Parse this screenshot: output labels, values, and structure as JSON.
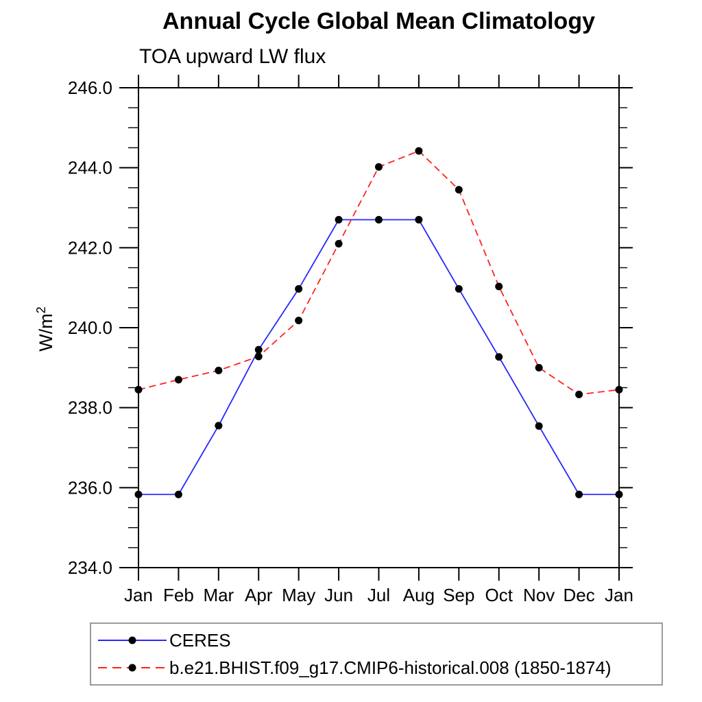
{
  "title": "Annual Cycle Global Mean Climatology",
  "subtitle": "TOA upward LW flux",
  "y_axis_label": {
    "base": "W/m",
    "exponent": "2"
  },
  "colors": {
    "ceres_line": "#2626ff",
    "model_line": "#ff2020",
    "marker": "#000000",
    "axis": "#000000",
    "legend_border": "#9a9a9a"
  },
  "chart_data": {
    "type": "line",
    "title": "Annual Cycle Global Mean Climatology",
    "subtitle": "TOA upward LW flux",
    "xlabel": "",
    "ylabel": "W/m²",
    "categories": [
      "Jan",
      "Feb",
      "Mar",
      "Apr",
      "May",
      "Jun",
      "Jul",
      "Aug",
      "Sep",
      "Oct",
      "Nov",
      "Dec",
      "Jan"
    ],
    "ylim": [
      234.0,
      246.0
    ],
    "y_major_ticks": [
      246.0,
      244.0,
      242.0,
      240.0,
      238.0,
      236.0,
      234.0
    ],
    "y_tick_labels": [
      "246.0",
      "244.0",
      "242.0",
      "240.0",
      "238.0",
      "236.0",
      "234.0"
    ],
    "y_minor_step": 0.5,
    "grid": false,
    "legend_position": "bottom-left-box",
    "series": [
      {
        "name": "CERES",
        "color": "#2626ff",
        "style": "solid",
        "marker": "circle",
        "marker_color": "#000000",
        "values": [
          235.83,
          235.83,
          237.55,
          239.45,
          240.97,
          242.7,
          242.7,
          242.7,
          240.97,
          239.27,
          237.54,
          235.83,
          235.83
        ]
      },
      {
        "name": "b.e21.BHIST.f09_g17.CMIP6-historical.008 (1850-1874)",
        "color": "#ff2020",
        "style": "dashed",
        "marker": "circle",
        "marker_color": "#000000",
        "values": [
          238.45,
          238.7,
          238.93,
          239.28,
          240.18,
          242.1,
          244.02,
          244.42,
          243.45,
          241.03,
          239.0,
          238.33,
          238.45
        ]
      }
    ]
  }
}
